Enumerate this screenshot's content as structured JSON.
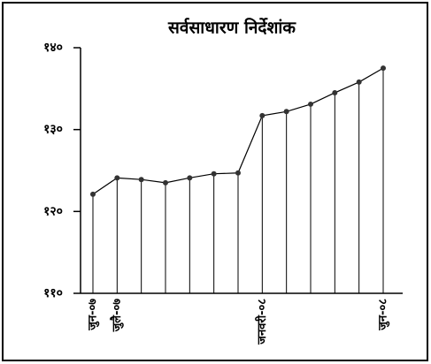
{
  "chart_data": {
    "type": "line",
    "title": "सर्वसाधारण निर्देशांक",
    "categories": [
      "जुन-०७",
      "जुलै-०७",
      null,
      null,
      null,
      null,
      null,
      "जनवरी-०८",
      null,
      null,
      null,
      null,
      "जुन-०८"
    ],
    "values": [
      122.1,
      124.1,
      123.9,
      123.5,
      124.1,
      124.6,
      124.7,
      131.7,
      132.2,
      133.1,
      134.5,
      135.8,
      137.5
    ],
    "color": "#000000",
    "ylim": [
      110,
      140
    ],
    "yticks": [
      {
        "value": 110,
        "label": "११०"
      },
      {
        "value": 120,
        "label": "१२०"
      },
      {
        "value": 130,
        "label": "१३०"
      },
      {
        "value": 140,
        "label": "१४०"
      }
    ],
    "drop_lines": true
  }
}
